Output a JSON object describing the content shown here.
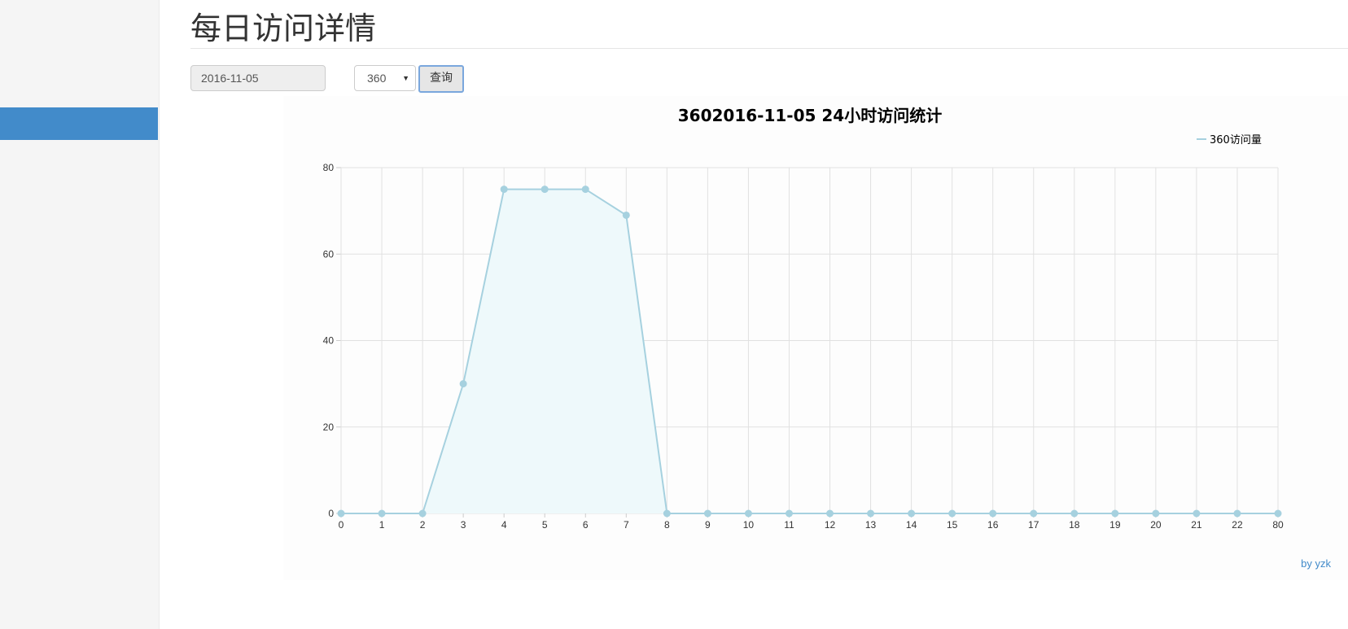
{
  "page": {
    "title": "每日访问详情"
  },
  "form": {
    "date_value": "2016-11-05",
    "source_select_value": "360",
    "query_button_label": "查询"
  },
  "chart_data": {
    "type": "line",
    "title": "3602016-11-05 24小时访问统计",
    "legend": [
      "360访问量"
    ],
    "legend_position": "top-right",
    "categories": [
      "0",
      "1",
      "2",
      "3",
      "4",
      "5",
      "6",
      "7",
      "8",
      "9",
      "10",
      "11",
      "12",
      "13",
      "14",
      "15",
      "16",
      "17",
      "18",
      "19",
      "20",
      "21",
      "22",
      "80"
    ],
    "series": [
      {
        "name": "360访问量",
        "values": [
          0,
          0,
          0,
          30,
          75,
          75,
          75,
          69,
          0,
          0,
          0,
          0,
          0,
          0,
          0,
          0,
          0,
          0,
          0,
          0,
          0,
          0,
          0,
          0
        ]
      }
    ],
    "y_ticks": [
      0,
      20,
      40,
      60,
      80
    ],
    "ylim": [
      0,
      80
    ],
    "grid": true,
    "area_fill": true,
    "line_color": "#a6d1df",
    "fill_color": "#eef9fb",
    "grid_color": "#e1e1e1"
  },
  "footer": {
    "credit": "by yzk"
  },
  "colors": {
    "sidebar_bg": "#f5f5f5",
    "sidebar_active": "#428bca",
    "link": "#428bca"
  }
}
